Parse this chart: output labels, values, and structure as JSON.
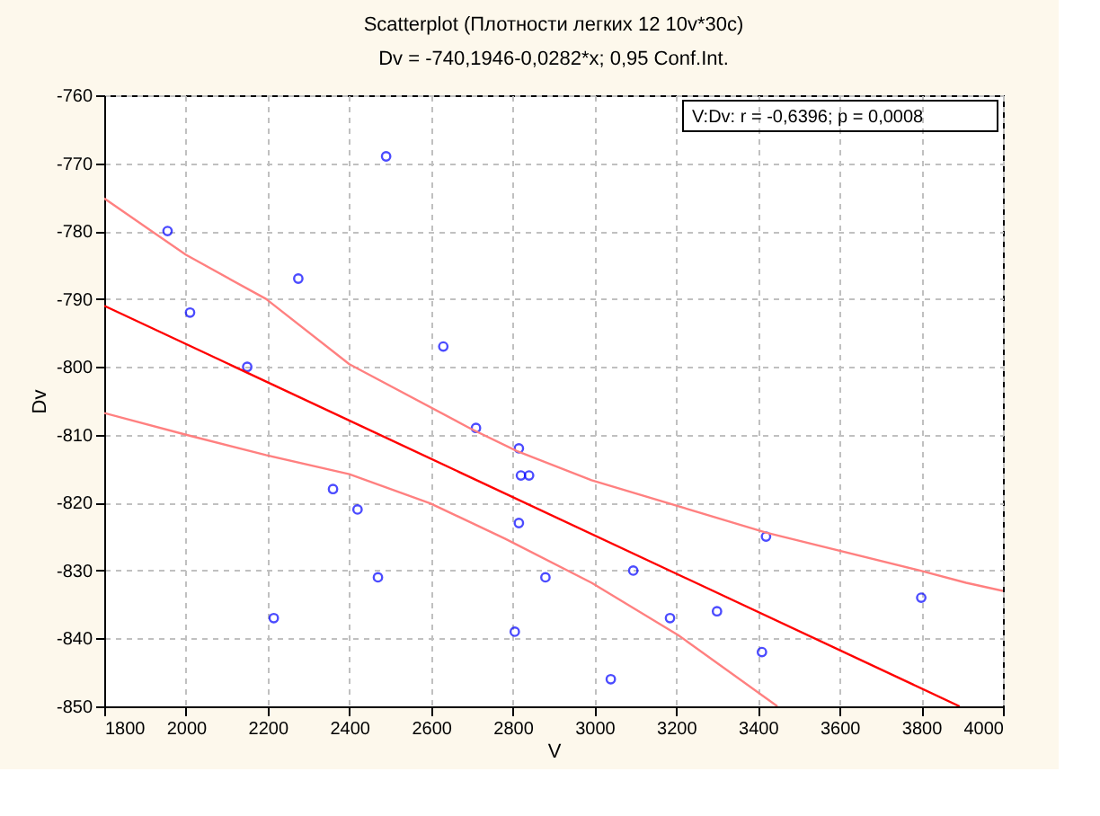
{
  "chart_data": {
    "type": "scatter",
    "title": "Scatterplot (Плотности легких 12 10v*30c)",
    "subtitle": "Dv = -740,1946-0,0282*x; 0,95 Conf.Int.",
    "xlabel": "V",
    "ylabel": "Dv",
    "annotations": [
      "V:Dv:   r = -0,6396; p = 0,0008"
    ],
    "xlim": [
      1800,
      4000
    ],
    "xticks": [
      1800,
      2000,
      2200,
      2400,
      2600,
      2800,
      3000,
      3200,
      3400,
      3600,
      3800,
      4000
    ],
    "ylim": [
      -850,
      -760
    ],
    "yticks": [
      -850,
      -840,
      -830,
      -820,
      -810,
      -800,
      -790,
      -780,
      -770,
      -760
    ],
    "grid": true,
    "series": [
      {
        "marker": "circle",
        "color": "#0000ff",
        "x": [
          1955,
          2490,
          2275,
          2010,
          2150,
          2630,
          2710,
          2815,
          2820,
          2840,
          2360,
          2420,
          2815,
          2470,
          2880,
          2215,
          2805,
          3095,
          3185,
          3300,
          3420,
          3410,
          3040,
          3800
        ],
        "values": [
          -780,
          -769,
          -787,
          -792,
          -800,
          -797,
          -809,
          -812,
          -816,
          -816,
          -818,
          -821,
          -823,
          -831,
          -831,
          -837,
          -839,
          -830,
          -837,
          -836,
          -825,
          -842,
          -846,
          -834
        ]
      },
      {
        "type": "line",
        "line_style": "solid",
        "color": "#ff0000",
        "x": [
          1800,
          3894
        ],
        "values": [
          -791,
          -850
        ]
      },
      {
        "type": "line",
        "line_style": "solid",
        "color": "#ff8080",
        "x": [
          1800,
          2000,
          2196,
          2400,
          2697,
          2810,
          2993,
          3420,
          3797,
          3910,
          4000
        ],
        "values": [
          -775.2,
          -783.5,
          -790.0,
          -799.6,
          -809.1,
          -812.4,
          -816.7,
          -824.4,
          -830.0,
          -831.8,
          -833.0
        ]
      },
      {
        "type": "line",
        "line_style": "solid",
        "color": "#ff8080",
        "x": [
          1800,
          2000,
          2196,
          2400,
          2598,
          2781,
          2993,
          3205,
          3448
        ],
        "values": [
          -806.8,
          -810.0,
          -813.0,
          -815.8,
          -820.1,
          -825.3,
          -831.8,
          -839.5,
          -850
        ]
      }
    ]
  }
}
